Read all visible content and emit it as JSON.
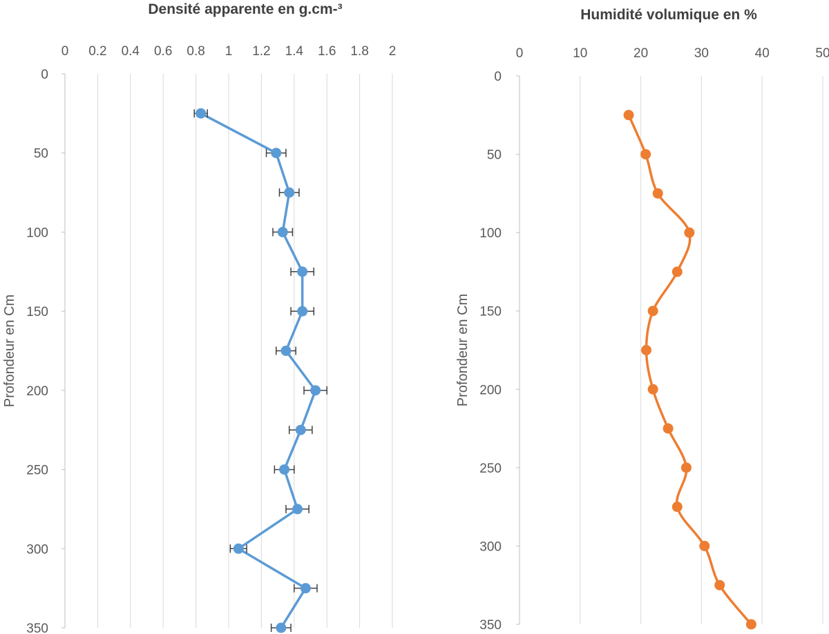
{
  "chart_data": [
    {
      "type": "scatter",
      "title": "Densité apparente en g.cm-³",
      "ylabel": "Profondeur en Cm",
      "xlabel": "",
      "xlim": [
        0,
        2
      ],
      "ylim": [
        0,
        350
      ],
      "y_inverted": true,
      "x_axis_position": "top",
      "xticks": [
        "0",
        "0.2",
        "0.4",
        "0.6",
        "0.8",
        "1",
        "1.2",
        "1.4",
        "1.6",
        "1.8",
        "2"
      ],
      "yticks": [
        "0",
        "50",
        "100",
        "150",
        "200",
        "250",
        "300",
        "350"
      ],
      "grid": "vertical",
      "color": "#5b9bd5",
      "line": "straight",
      "error_bars": "x",
      "series": [
        {
          "points": [
            {
              "x": 0.83,
              "y": 25,
              "err": 0.04
            },
            {
              "x": 1.29,
              "y": 50,
              "err": 0.06
            },
            {
              "x": 1.37,
              "y": 75,
              "err": 0.06
            },
            {
              "x": 1.33,
              "y": 100,
              "err": 0.06
            },
            {
              "x": 1.45,
              "y": 125,
              "err": 0.07
            },
            {
              "x": 1.45,
              "y": 150,
              "err": 0.07
            },
            {
              "x": 1.35,
              "y": 175,
              "err": 0.06
            },
            {
              "x": 1.53,
              "y": 200,
              "err": 0.07
            },
            {
              "x": 1.44,
              "y": 225,
              "err": 0.07
            },
            {
              "x": 1.34,
              "y": 250,
              "err": 0.06
            },
            {
              "x": 1.42,
              "y": 275,
              "err": 0.07
            },
            {
              "x": 1.06,
              "y": 300,
              "err": 0.05
            },
            {
              "x": 1.47,
              "y": 325,
              "err": 0.07
            },
            {
              "x": 1.32,
              "y": 350,
              "err": 0.06
            }
          ]
        }
      ]
    },
    {
      "type": "scatter",
      "title": "Humidité volumique en %",
      "ylabel": "Profondeur en Cm",
      "xlabel": "",
      "xlim": [
        0,
        50
      ],
      "ylim": [
        0,
        350
      ],
      "y_inverted": true,
      "x_axis_position": "top",
      "xticks": [
        "0",
        "10",
        "20",
        "30",
        "40",
        "50"
      ],
      "yticks": [
        "0",
        "50",
        "100",
        "150",
        "200",
        "250",
        "300",
        "350"
      ],
      "grid": "vertical",
      "color": "#ed7d31",
      "line": "smooth",
      "error_bars": "none",
      "series": [
        {
          "points": [
            {
              "x": 18.0,
              "y": 25
            },
            {
              "x": 20.8,
              "y": 50
            },
            {
              "x": 22.8,
              "y": 75
            },
            {
              "x": 28.0,
              "y": 100
            },
            {
              "x": 26.0,
              "y": 125
            },
            {
              "x": 22.0,
              "y": 150
            },
            {
              "x": 20.9,
              "y": 175
            },
            {
              "x": 22.0,
              "y": 200
            },
            {
              "x": 24.5,
              "y": 225
            },
            {
              "x": 27.5,
              "y": 250
            },
            {
              "x": 26.0,
              "y": 275
            },
            {
              "x": 30.5,
              "y": 300
            },
            {
              "x": 33.0,
              "y": 325
            },
            {
              "x": 38.2,
              "y": 350
            }
          ]
        }
      ]
    }
  ]
}
